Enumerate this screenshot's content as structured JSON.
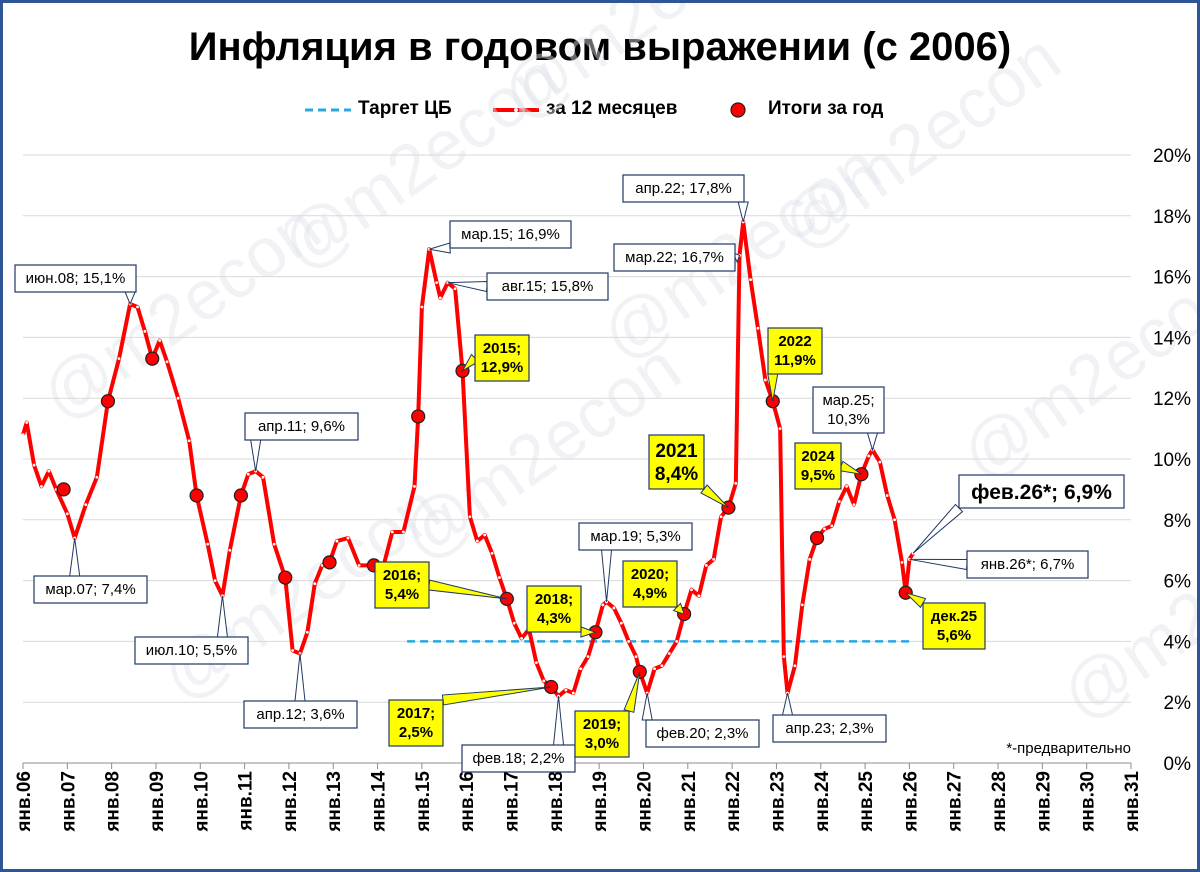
{
  "title": "Инфляция в годовом выражении (с 2006)",
  "watermark": "@m2econ",
  "footnote": "*-предварительно",
  "colors": {
    "line": "#ff0000",
    "target": "#29a8e0",
    "marker": "#ff0000",
    "marker_edge": "#1f1f1f",
    "callout_yellow": "#ffff00",
    "callout_border": "#1f3864",
    "grid": "#d9d9d9"
  },
  "legend": [
    {
      "label": "Таргет ЦБ",
      "symbol": "dashed-line"
    },
    {
      "label": "за 12 месяцев",
      "symbol": "line-with-dots"
    },
    {
      "label": "Итоги за год",
      "symbol": "circle-marker"
    }
  ],
  "chart_data": {
    "type": "line",
    "title": "Инфляция в годовом выражении (с 2006)",
    "ylim": [
      0,
      20
    ],
    "y_ticks": [
      "0%",
      "2%",
      "4%",
      "6%",
      "8%",
      "10%",
      "12%",
      "14%",
      "16%",
      "18%",
      "20%"
    ],
    "x_ticks": [
      "янв.06",
      "янв.07",
      "янв.08",
      "янв.09",
      "янв.10",
      "янв.11",
      "янв.12",
      "янв.13",
      "янв.14",
      "янв.15",
      "янв.16",
      "янв.17",
      "янв.18",
      "янв.19",
      "янв.20",
      "янв.21",
      "янв.22",
      "янв.23",
      "янв.24",
      "янв.25",
      "янв.26",
      "янв.27",
      "янв.28",
      "янв.29",
      "янв.30",
      "янв.31"
    ],
    "grid": true,
    "legend_position": "top",
    "series": [
      {
        "name": "за 12 месяцев",
        "points": [
          [
            "2006-01",
            10.8
          ],
          [
            "2006-02",
            11.2
          ],
          [
            "2006-04",
            9.8
          ],
          [
            "2006-06",
            9.1
          ],
          [
            "2006-08",
            9.6
          ],
          [
            "2006-10",
            9.0
          ],
          [
            "2007-01",
            8.2
          ],
          [
            "2007-03",
            7.4
          ],
          [
            "2007-06",
            8.5
          ],
          [
            "2007-09",
            9.4
          ],
          [
            "2007-12",
            11.9
          ],
          [
            "2008-03",
            13.3
          ],
          [
            "2008-06",
            15.1
          ],
          [
            "2008-08",
            15.0
          ],
          [
            "2008-10",
            14.2
          ],
          [
            "2008-12",
            13.3
          ],
          [
            "2009-02",
            13.9
          ],
          [
            "2009-04",
            13.2
          ],
          [
            "2009-07",
            12.0
          ],
          [
            "2009-10",
            10.6
          ],
          [
            "2009-12",
            8.8
          ],
          [
            "2010-03",
            7.2
          ],
          [
            "2010-05",
            6.0
          ],
          [
            "2010-07",
            5.5
          ],
          [
            "2010-09",
            7.0
          ],
          [
            "2010-12",
            8.8
          ],
          [
            "2011-02",
            9.5
          ],
          [
            "2011-04",
            9.6
          ],
          [
            "2011-06",
            9.4
          ],
          [
            "2011-09",
            7.2
          ],
          [
            "2011-12",
            6.1
          ],
          [
            "2012-02",
            3.7
          ],
          [
            "2012-04",
            3.6
          ],
          [
            "2012-06",
            4.3
          ],
          [
            "2012-08",
            5.9
          ],
          [
            "2012-10",
            6.5
          ],
          [
            "2012-12",
            6.6
          ],
          [
            "2013-02",
            7.3
          ],
          [
            "2013-05",
            7.4
          ],
          [
            "2013-08",
            6.5
          ],
          [
            "2013-11",
            6.5
          ],
          [
            "2013-12",
            6.5
          ],
          [
            "2014-02",
            6.2
          ],
          [
            "2014-05",
            7.6
          ],
          [
            "2014-08",
            7.6
          ],
          [
            "2014-11",
            9.1
          ],
          [
            "2014-12",
            11.4
          ],
          [
            "2015-01",
            15.0
          ],
          [
            "2015-03",
            16.9
          ],
          [
            "2015-05",
            15.8
          ],
          [
            "2015-06",
            15.3
          ],
          [
            "2015-08",
            15.8
          ],
          [
            "2015-10",
            15.6
          ],
          [
            "2015-12",
            12.9
          ],
          [
            "2016-02",
            8.1
          ],
          [
            "2016-04",
            7.3
          ],
          [
            "2016-06",
            7.5
          ],
          [
            "2016-08",
            6.9
          ],
          [
            "2016-10",
            6.1
          ],
          [
            "2016-12",
            5.4
          ],
          [
            "2017-02",
            4.6
          ],
          [
            "2017-04",
            4.1
          ],
          [
            "2017-06",
            4.4
          ],
          [
            "2017-08",
            3.3
          ],
          [
            "2017-10",
            2.7
          ],
          [
            "2017-12",
            2.5
          ],
          [
            "2018-02",
            2.2
          ],
          [
            "2018-04",
            2.4
          ],
          [
            "2018-06",
            2.3
          ],
          [
            "2018-08",
            3.1
          ],
          [
            "2018-10",
            3.5
          ],
          [
            "2018-12",
            4.3
          ],
          [
            "2019-02",
            5.2
          ],
          [
            "2019-03",
            5.3
          ],
          [
            "2019-05",
            5.1
          ],
          [
            "2019-07",
            4.6
          ],
          [
            "2019-09",
            4.0
          ],
          [
            "2019-11",
            3.5
          ],
          [
            "2019-12",
            3.0
          ],
          [
            "2020-02",
            2.3
          ],
          [
            "2020-04",
            3.1
          ],
          [
            "2020-06",
            3.2
          ],
          [
            "2020-08",
            3.6
          ],
          [
            "2020-10",
            4.0
          ],
          [
            "2020-12",
            4.9
          ],
          [
            "2021-02",
            5.7
          ],
          [
            "2021-04",
            5.5
          ],
          [
            "2021-06",
            6.5
          ],
          [
            "2021-08",
            6.7
          ],
          [
            "2021-10",
            8.1
          ],
          [
            "2021-12",
            8.4
          ],
          [
            "2022-02",
            9.2
          ],
          [
            "2022-03",
            16.7
          ],
          [
            "2022-04",
            17.8
          ],
          [
            "2022-06",
            15.9
          ],
          [
            "2022-08",
            14.3
          ],
          [
            "2022-10",
            12.6
          ],
          [
            "2022-12",
            11.9
          ],
          [
            "2023-02",
            11.0
          ],
          [
            "2023-03",
            3.5
          ],
          [
            "2023-04",
            2.3
          ],
          [
            "2023-06",
            3.2
          ],
          [
            "2023-08",
            5.2
          ],
          [
            "2023-10",
            6.7
          ],
          [
            "2023-12",
            7.4
          ],
          [
            "2024-02",
            7.7
          ],
          [
            "2024-04",
            7.8
          ],
          [
            "2024-06",
            8.6
          ],
          [
            "2024-08",
            9.1
          ],
          [
            "2024-10",
            8.5
          ],
          [
            "2024-12",
            9.5
          ],
          [
            "2025-02",
            10.1
          ],
          [
            "2025-03",
            10.3
          ],
          [
            "2025-05",
            9.9
          ],
          [
            "2025-07",
            8.8
          ],
          [
            "2025-09",
            8.0
          ],
          [
            "2025-11",
            6.6
          ],
          [
            "2025-12",
            5.6
          ],
          [
            "2026-01",
            6.7
          ],
          [
            "2026-02",
            6.9
          ]
        ]
      },
      {
        "name": "Итоги за год",
        "points": [
          [
            "2006-12",
            9.0
          ],
          [
            "2007-12",
            11.9
          ],
          [
            "2008-12",
            13.3
          ],
          [
            "2009-12",
            8.8
          ],
          [
            "2010-12",
            8.8
          ],
          [
            "2011-12",
            6.1
          ],
          [
            "2012-12",
            6.6
          ],
          [
            "2013-12",
            6.5
          ],
          [
            "2014-12",
            11.4
          ],
          [
            "2015-12",
            12.9
          ],
          [
            "2016-12",
            5.4
          ],
          [
            "2017-12",
            2.5
          ],
          [
            "2018-12",
            4.3
          ],
          [
            "2019-12",
            3.0
          ],
          [
            "2020-12",
            4.9
          ],
          [
            "2021-12",
            8.4
          ],
          [
            "2022-12",
            11.9
          ],
          [
            "2023-12",
            7.4
          ],
          [
            "2024-12",
            9.5
          ],
          [
            "2025-12",
            5.6
          ]
        ]
      },
      {
        "name": "Таргет ЦБ",
        "points": [
          [
            "2014-09",
            4.0
          ],
          [
            "2026-01",
            4.0
          ]
        ]
      }
    ],
    "annotations": [
      {
        "date": "2007-03",
        "value": 7.4,
        "text": "мар.07; 7,4%",
        "style": "white"
      },
      {
        "date": "2008-06",
        "value": 15.1,
        "text": "июн.08; 15,1%",
        "style": "white"
      },
      {
        "date": "2010-07",
        "value": 5.5,
        "text": "июл.10; 5,5%",
        "style": "white"
      },
      {
        "date": "2011-04",
        "value": 9.6,
        "text": "апр.11; 9,6%",
        "style": "white"
      },
      {
        "date": "2012-04",
        "value": 3.6,
        "text": "апр.12; 3,6%",
        "style": "white"
      },
      {
        "date": "2015-03",
        "value": 16.9,
        "text": "мар.15; 16,9%",
        "style": "white"
      },
      {
        "date": "2015-08",
        "value": 15.8,
        "text": "авг.15; 15,8%",
        "style": "white"
      },
      {
        "date": "2015-12",
        "value": 12.9,
        "text": "2015;\n12,9%",
        "style": "yellow"
      },
      {
        "date": "2016-12",
        "value": 5.4,
        "text": "2016;\n5,4%",
        "style": "yellow"
      },
      {
        "date": "2017-12",
        "value": 2.5,
        "text": "2017;\n2,5%",
        "style": "yellow"
      },
      {
        "date": "2018-02",
        "value": 2.2,
        "text": "фев.18; 2,2%",
        "style": "white"
      },
      {
        "date": "2018-12",
        "value": 4.3,
        "text": "2018;\n4,3%",
        "style": "yellow"
      },
      {
        "date": "2019-03",
        "value": 5.3,
        "text": "мар.19; 5,3%",
        "style": "white"
      },
      {
        "date": "2019-12",
        "value": 3.0,
        "text": "2019;\n3,0%",
        "style": "yellow"
      },
      {
        "date": "2020-02",
        "value": 2.3,
        "text": "фев.20; 2,3%",
        "style": "white"
      },
      {
        "date": "2020-12",
        "value": 4.9,
        "text": "2020;\n4,9%",
        "style": "yellow"
      },
      {
        "date": "2021-12",
        "value": 8.4,
        "text": "2021\n8,4%",
        "style": "yellow-big"
      },
      {
        "date": "2022-04",
        "value": 17.8,
        "text": "апр.22; 17,8%",
        "style": "white"
      },
      {
        "date": "2022-03",
        "value": 16.7,
        "text": "мар.22; 16,7%",
        "style": "white"
      },
      {
        "date": "2022-12",
        "value": 11.9,
        "text": "2022\n11,9%",
        "style": "yellow"
      },
      {
        "date": "2023-04",
        "value": 2.3,
        "text": "апр.23; 2,3%",
        "style": "white"
      },
      {
        "date": "2024-12",
        "value": 9.5,
        "text": "2024\n9,5%",
        "style": "yellow"
      },
      {
        "date": "2025-03",
        "value": 10.3,
        "text": "мар.25;\n10,3%",
        "style": "white"
      },
      {
        "date": "2025-12",
        "value": 5.6,
        "text": "дек.25\n5,6%",
        "style": "yellow"
      },
      {
        "date": "2026-01",
        "value": 6.7,
        "text": "янв.26*; 6,7%",
        "style": "white"
      },
      {
        "date": "2026-02",
        "value": 6.9,
        "text": "фев.26*; 6,9%",
        "style": "white-big"
      }
    ]
  }
}
